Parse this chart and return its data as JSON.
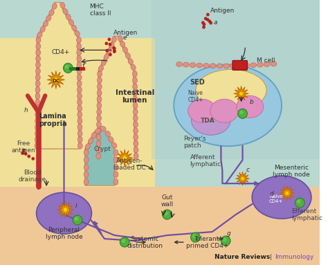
{
  "bg_teal": "#b8d8d0",
  "bg_yellow": "#f0e098",
  "bg_peach": "#f0c898",
  "villus_fill": "#f0e098",
  "villus_edge": "#c89060",
  "epi_fill": "#e09080",
  "epi_edge": "#b86050",
  "pp_fill": "#98c8e0",
  "pp_edge": "#60a0c0",
  "sed_fill": "#f0e098",
  "tda_fill": "#c098d0",
  "naive_fill": "#e090c0",
  "naive_edge": "#c070a0",
  "dc_fill": "#e8a000",
  "dc_edge": "#c06000",
  "dc_center": "#f8d000",
  "green_fill": "#50b040",
  "green_edge": "#308020",
  "mln_fill": "#9070c0",
  "mln_edge": "#6050a0",
  "pln_fill": "#9070c0",
  "pln_edge": "#6050a0",
  "m_cell_fill": "#c02020",
  "red_vessel": "#c03030",
  "arrow_purple": "#7050a0",
  "arrow_black": "#303030",
  "antigen_dot": "#c02020",
  "text_dark": "#303030",
  "nature_reviews": "Nature Reviews",
  "immunology": "Immunology",
  "labels": {
    "intestinal_lumen": "Intestinal\nlumen",
    "lamina_propria": "Lamina\npropria",
    "free_antigen": "Free\nantigen",
    "blood_drainage": "Blood\ndrainage",
    "antigen_loaded_dc": "Antigen-\nloaded DC",
    "crypt": "Crypt",
    "peyers_patch": "Peyer's\npatch",
    "sed": "SED",
    "tda": "TDA",
    "naive_cd4_pp": "Naive\nCD4+",
    "m_cell": "M cell",
    "antigen_top": "Antigen",
    "antigen_e": "Antigen",
    "mhc_class_ii": "MHC\nclass II",
    "cd4_label": "CD4+",
    "dc_label": "DC",
    "afferent_lymphatic": "Afferent\nlymphatic",
    "mesenteric_lymph_node": "Mesenteric\nlymph node",
    "naive_cd4_mln": "Naive\nCD4+",
    "efferent_lymphatic": "Efferent\nlymphatic",
    "peripheral_lymph_node": "Peripheral\nlymph node",
    "gut_wall": "Gut\nwall",
    "systemic_distribution": "Systemic\ndistribution",
    "tolerant_primed": "Tolerant/\nprimed CD4+"
  }
}
